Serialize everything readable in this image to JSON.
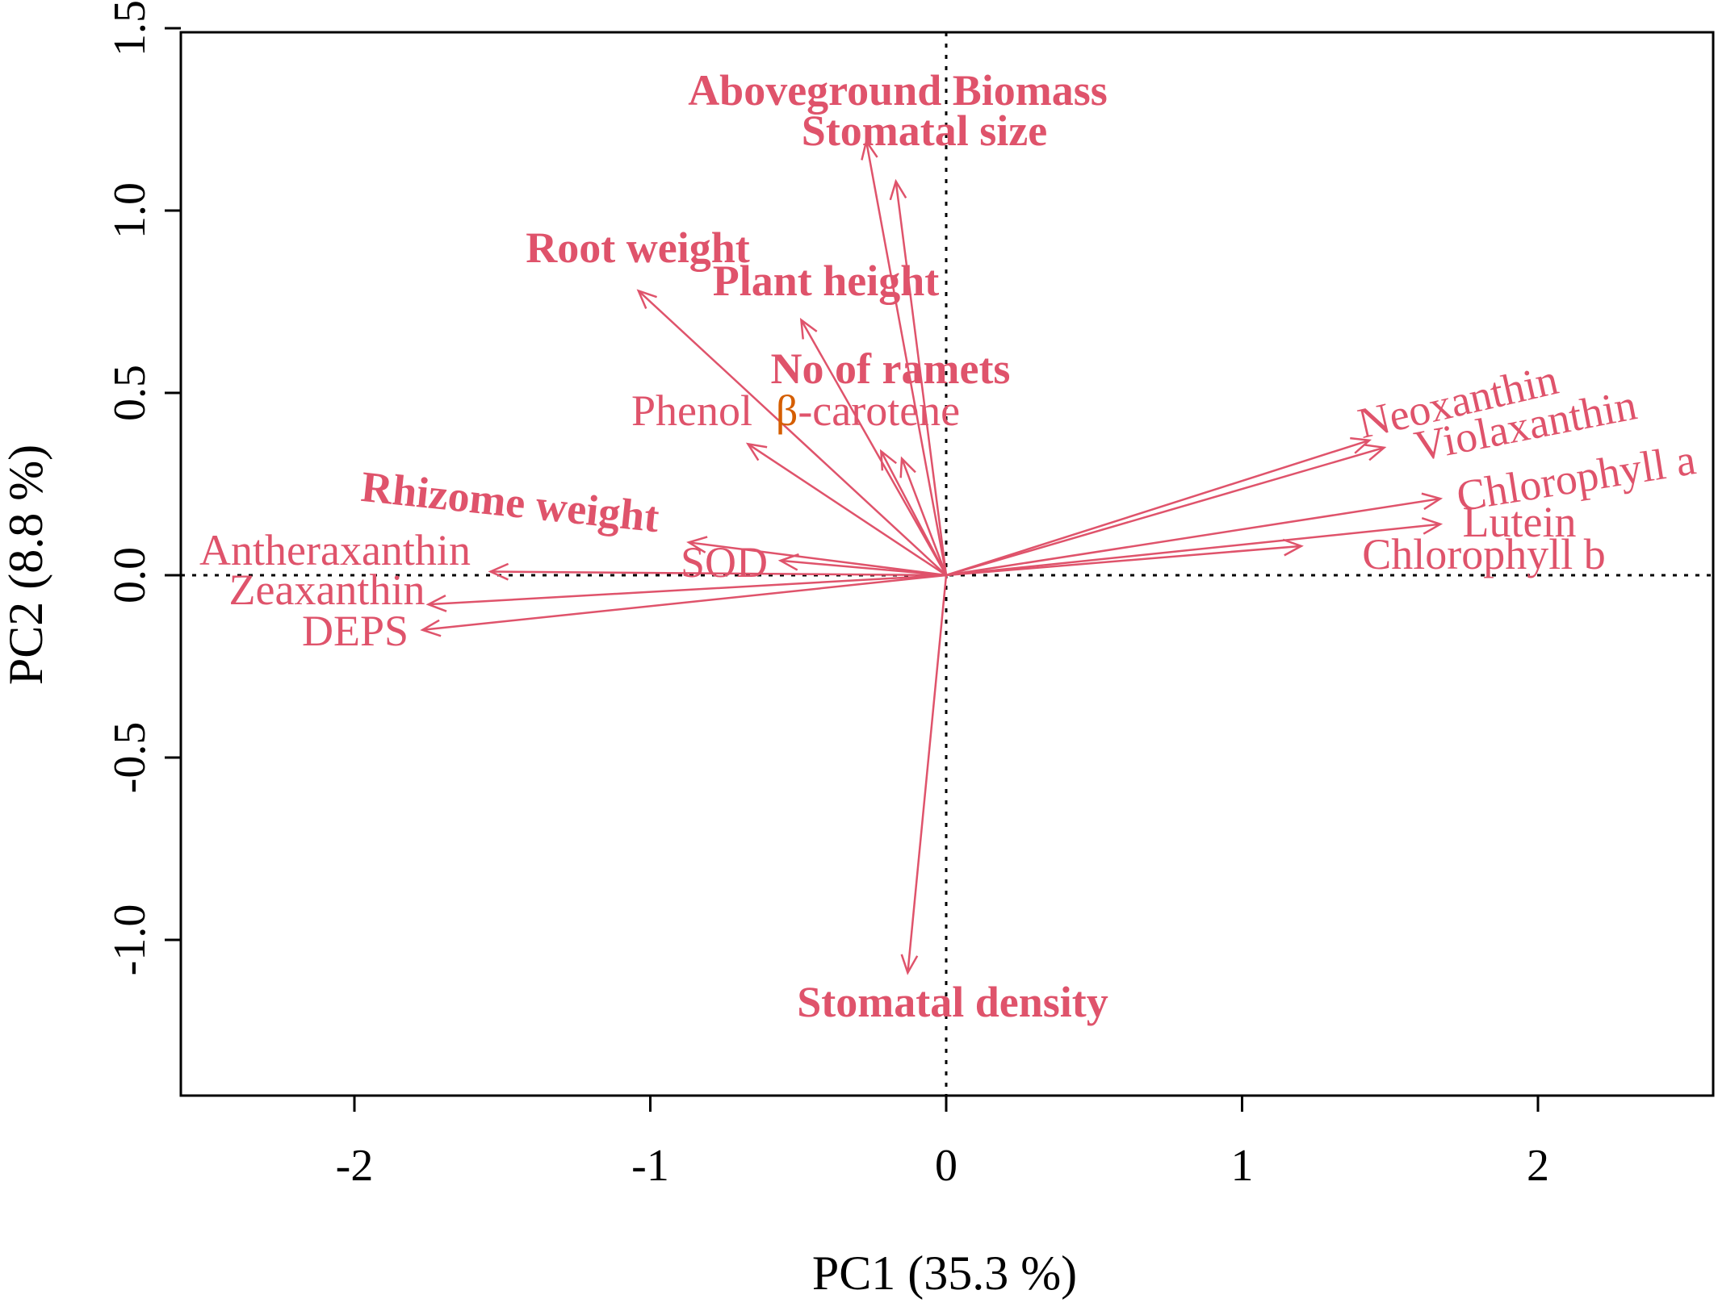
{
  "chart_data": {
    "type": "biplot",
    "xlabel": "PC1 (35.3 %)",
    "ylabel": "PC2 (8.8 %)",
    "xlim": [
      -2.6,
      2.6
    ],
    "ylim": [
      -1.42,
      1.5
    ],
    "xticks": [
      -2,
      -1,
      0,
      1,
      2
    ],
    "yticks": [
      -1.0,
      -0.5,
      0.0,
      0.5,
      1.0,
      1.5
    ],
    "xtick_labels": [
      "-2",
      "-1",
      "0",
      "1",
      "2"
    ],
    "ytick_labels": [
      "-1.0",
      "-0.5",
      "0.0",
      "0.5",
      "1.0",
      "1.5"
    ],
    "reference_lines": {
      "x": 0,
      "y": 0,
      "style": "dotted"
    },
    "arrow_color": "#DF536B",
    "label_color": "#DF536B",
    "accent_color": "#D55E00",
    "vectors": [
      {
        "name": "Aboveground Biomass",
        "x": -0.27,
        "y": 1.19,
        "bold": true
      },
      {
        "name": "Stomatal size",
        "x": -0.17,
        "y": 1.08,
        "bold": true
      },
      {
        "name": "Root weight",
        "x": -1.04,
        "y": 0.78,
        "bold": true
      },
      {
        "name": "Plant height",
        "x": -0.49,
        "y": 0.7,
        "bold": true
      },
      {
        "name": "No of ramets",
        "x": -0.22,
        "y": 0.34,
        "bold": true
      },
      {
        "name": "Phenol",
        "x": -0.67,
        "y": 0.36,
        "bold": false
      },
      {
        "name": "β-carotene",
        "x": -0.15,
        "y": 0.32,
        "bold": false
      },
      {
        "name": "Rhizome weight",
        "x": -0.87,
        "y": 0.09,
        "bold": true
      },
      {
        "name": "SOD",
        "x": -0.56,
        "y": 0.04,
        "bold": false
      },
      {
        "name": "Antheraxanthin",
        "x": -1.54,
        "y": 0.01,
        "bold": false
      },
      {
        "name": "Zeaxanthin",
        "x": -1.75,
        "y": -0.08,
        "bold": false
      },
      {
        "name": "DEPS",
        "x": -1.77,
        "y": -0.15,
        "bold": false
      },
      {
        "name": "Neoxanthin",
        "x": 1.43,
        "y": 0.37,
        "bold": false
      },
      {
        "name": "Violaxanthin",
        "x": 1.48,
        "y": 0.35,
        "bold": false
      },
      {
        "name": "Chlorophyll a",
        "x": 1.67,
        "y": 0.21,
        "bold": false
      },
      {
        "name": "Lutein",
        "x": 1.67,
        "y": 0.14,
        "bold": false
      },
      {
        "name": "Chlorophyll b",
        "x": 1.2,
        "y": 0.08,
        "bold": false
      },
      {
        "name": "Stomatal density",
        "x": -0.13,
        "y": -1.09,
        "bold": true
      }
    ]
  }
}
